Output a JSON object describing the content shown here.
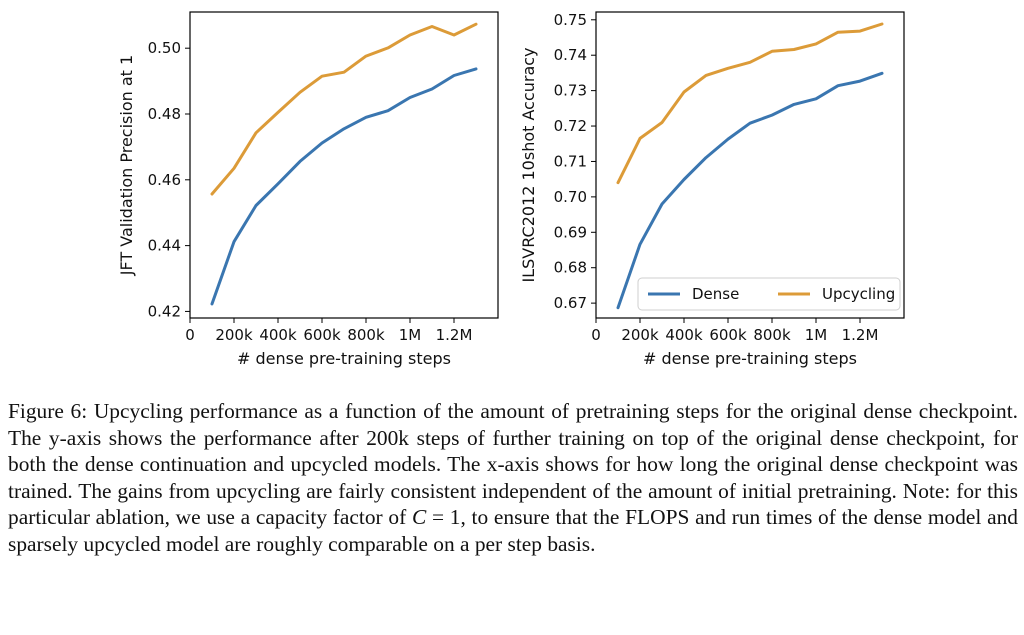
{
  "chart_data": [
    {
      "type": "line",
      "title": "",
      "xlabel": "# dense pre-training steps",
      "ylabel": "JFT Validation Precision at 1",
      "xlim": [
        0,
        1400000
      ],
      "ylim": [
        0.418,
        0.511
      ],
      "xticks": [
        0,
        200000,
        400000,
        600000,
        800000,
        1000000,
        1200000
      ],
      "xtick_labels": [
        "0",
        "200k",
        "400k",
        "600k",
        "800k",
        "1M",
        "1.2M"
      ],
      "yticks": [
        0.42,
        0.44,
        0.46,
        0.48,
        0.5
      ],
      "ytick_labels": [
        "0.42",
        "0.44",
        "0.46",
        "0.48",
        "0.50"
      ],
      "x": [
        100000,
        200000,
        300000,
        400000,
        500000,
        600000,
        700000,
        800000,
        900000,
        1000000,
        1100000,
        1200000,
        1300000
      ],
      "series": [
        {
          "name": "Dense",
          "color": "#3a76b0",
          "values": [
            0.4223,
            0.4412,
            0.4522,
            0.4588,
            0.4656,
            0.4712,
            0.4755,
            0.479,
            0.481,
            0.485,
            0.4876,
            0.4917,
            0.4937
          ]
        },
        {
          "name": "Upcycling",
          "color": "#dc9b38",
          "values": [
            0.4557,
            0.4635,
            0.4743,
            0.4805,
            0.4866,
            0.4915,
            0.4927,
            0.4976,
            0.5001,
            0.504,
            0.5066,
            0.504,
            0.5073
          ]
        }
      ],
      "legend": null
    },
    {
      "type": "line",
      "title": "",
      "xlabel": "# dense pre-training steps",
      "ylabel": "ILSVRC2012 10shot Accuracy",
      "xlim": [
        0,
        1400000
      ],
      "ylim": [
        0.6658,
        0.7522
      ],
      "xticks": [
        0,
        200000,
        400000,
        600000,
        800000,
        1000000,
        1200000
      ],
      "xtick_labels": [
        "0",
        "200k",
        "400k",
        "600k",
        "800k",
        "1M",
        "1.2M"
      ],
      "yticks": [
        0.67,
        0.68,
        0.69,
        0.7,
        0.71,
        0.72,
        0.73,
        0.74,
        0.75
      ],
      "ytick_labels": [
        "0.67",
        "0.68",
        "0.69",
        "0.70",
        "0.71",
        "0.72",
        "0.73",
        "0.74",
        "0.75"
      ],
      "x": [
        100000,
        200000,
        300000,
        400000,
        500000,
        600000,
        700000,
        800000,
        900000,
        1000000,
        1100000,
        1200000,
        1300000
      ],
      "series": [
        {
          "name": "Dense",
          "color": "#3a76b0",
          "values": [
            0.6687,
            0.6866,
            0.698,
            0.7049,
            0.7111,
            0.7163,
            0.7208,
            0.7231,
            0.7261,
            0.7277,
            0.7314,
            0.7327,
            0.7349
          ]
        },
        {
          "name": "Upcycling",
          "color": "#dc9b38",
          "values": [
            0.704,
            0.7165,
            0.721,
            0.7296,
            0.7343,
            0.7363,
            0.738,
            0.7411,
            0.7416,
            0.7432,
            0.7465,
            0.7468,
            0.7488
          ]
        }
      ],
      "legend": "lower-right"
    }
  ],
  "caption": {
    "part1": "Figure 6: Upcycling performance as a function of the amount of pretraining steps for the original dense checkpoint. The y-axis shows the performance after 200k steps of further training on top of the original dense checkpoint, for both the dense continuation and upcycled models. The x-axis shows for how long the original dense checkpoint was trained. The gains from upcycling are fairly consistent independent of the amount of initial pretraining. Note: for this particular ablation, we use a capacity factor of ",
    "var": "C",
    "part2": " = 1, to ensure that the FLOPS and run times of the dense model and sparsely upcycled model are roughly comparable on a per step basis."
  },
  "colors": {
    "dense": "#3a76b0",
    "upcycling": "#dc9b38"
  }
}
